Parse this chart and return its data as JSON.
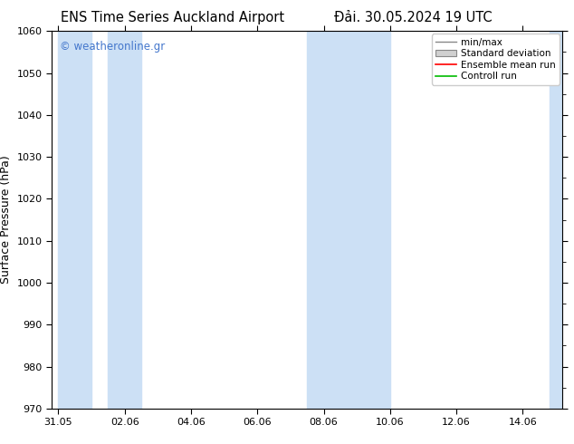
{
  "title_left": "ENS Time Series Auckland Airport",
  "title_right": "Đải. 30.05.2024 19 UTC",
  "ylabel": "Surface Pressure (hPa)",
  "ylim": [
    970,
    1060
  ],
  "yticks": [
    970,
    980,
    990,
    1000,
    1010,
    1020,
    1030,
    1040,
    1050,
    1060
  ],
  "x_labels": [
    "31.05",
    "02.06",
    "04.06",
    "06.06",
    "08.06",
    "10.06",
    "12.06",
    "14.06"
  ],
  "x_values": [
    0,
    2,
    4,
    6,
    8,
    10,
    12,
    14
  ],
  "x_lim": [
    -0.2,
    15.2
  ],
  "shaded_bands": [
    {
      "x_start": 0.0,
      "x_end": 1.0
    },
    {
      "x_start": 1.5,
      "x_end": 2.5
    },
    {
      "x_start": 7.5,
      "x_end": 9.0
    },
    {
      "x_start": 9.0,
      "x_end": 10.0
    },
    {
      "x_start": 14.8,
      "x_end": 15.2
    }
  ],
  "band_color": "#cce0f5",
  "watermark_text": "© weatheronline.gr",
  "watermark_color": "#4477cc",
  "legend_items": [
    {
      "label": "min/max",
      "color": "#aaaaaa",
      "type": "errorbar"
    },
    {
      "label": "Standard deviation",
      "color": "#cccccc",
      "type": "bar"
    },
    {
      "label": "Ensemble mean run",
      "color": "#ff0000",
      "type": "line"
    },
    {
      "label": "Controll run",
      "color": "#00bb00",
      "type": "line"
    }
  ],
  "title_fontsize": 10.5,
  "ylabel_fontsize": 9,
  "tick_fontsize": 8,
  "watermark_fontsize": 8.5,
  "legend_fontsize": 7.5,
  "background_color": "#ffffff"
}
